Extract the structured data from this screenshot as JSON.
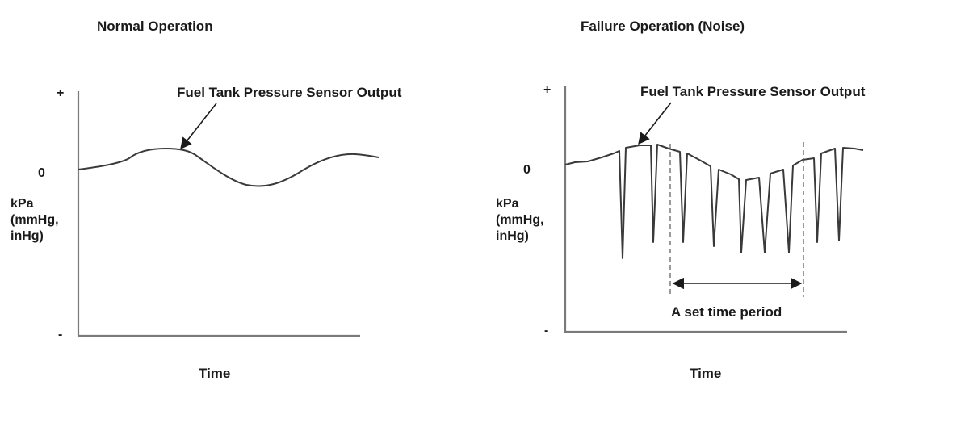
{
  "colors": {
    "curve": "#3a3a3a",
    "axis": "#7a7a7a",
    "text": "#1a1a1a",
    "background": "#ffffff"
  },
  "left_panel": {
    "title": "Normal Operation",
    "callout": "Fuel Tank Pressure Sensor Output",
    "y_plus": "+",
    "y_zero": "0",
    "y_minus": "-",
    "y_unit_1": "kPa",
    "y_unit_2": "(mmHg,",
    "y_unit_3": "inHg)",
    "x_label": "Time"
  },
  "right_panel": {
    "title": "Failure Operation (Noise)",
    "callout": "Fuel Tank Pressure Sensor Output",
    "y_plus": "+",
    "y_zero": "0",
    "y_minus": "-",
    "y_unit_1": "kPa",
    "y_unit_2": "(mmHg,",
    "y_unit_3": "inHg)",
    "x_label": "Time",
    "period_label": "A set time period"
  }
}
